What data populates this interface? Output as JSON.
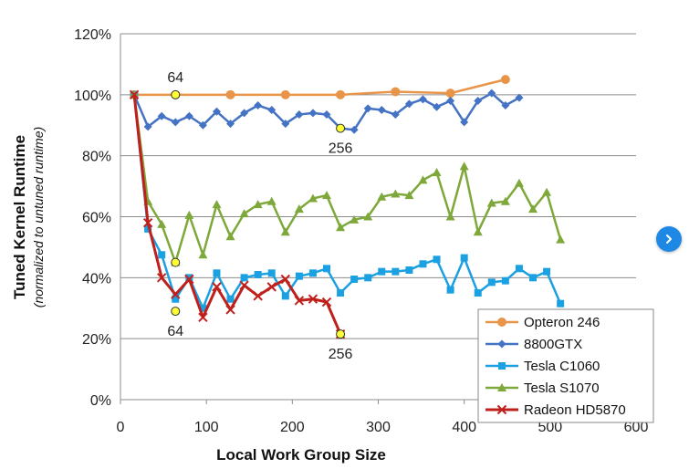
{
  "chart_data": {
    "type": "line",
    "xlabel": "Local Work Group Size",
    "ylabel": "Tuned Kernel Runtime",
    "ylabel_sub": "(normalized to untuned runtime)",
    "xlim": [
      0,
      600
    ],
    "ylim": [
      0,
      120
    ],
    "xticks": [
      0,
      100,
      200,
      300,
      400,
      500,
      600
    ],
    "yticks": [
      0,
      20,
      40,
      60,
      80,
      100,
      120
    ],
    "ytick_labels": [
      "0%",
      "20%",
      "40%",
      "60%",
      "80%",
      "100%",
      "120%"
    ],
    "grid": "horizontal",
    "legend_position": "bottom-right",
    "series": [
      {
        "name": "Opteron 246",
        "color": "#E8954A",
        "marker": "circle",
        "x": [
          16,
          64,
          128,
          192,
          256,
          320,
          384,
          448
        ],
        "y": [
          100,
          100,
          100,
          100,
          100,
          101,
          100.5,
          105
        ]
      },
      {
        "name": "8800GTX",
        "color": "#4472C4",
        "marker": "diamond",
        "x": [
          16,
          32,
          48,
          64,
          80,
          96,
          112,
          128,
          144,
          160,
          176,
          192,
          208,
          224,
          240,
          256,
          272,
          288,
          304,
          320,
          336,
          352,
          368,
          384,
          400,
          416,
          432,
          448,
          464
        ],
        "y": [
          100,
          89.5,
          93,
          91,
          93,
          90,
          94.5,
          90.5,
          94,
          96.5,
          95,
          90.5,
          93.5,
          94,
          93.5,
          89,
          88.5,
          95.5,
          95,
          93.5,
          97,
          98.5,
          96,
          98,
          91,
          98,
          100.5,
          96.5,
          99
        ]
      },
      {
        "name": "Tesla C1060",
        "color": "#1BA1E2",
        "marker": "square",
        "x": [
          16,
          32,
          48,
          64,
          80,
          96,
          112,
          128,
          144,
          160,
          176,
          192,
          208,
          224,
          240,
          256,
          272,
          288,
          304,
          320,
          336,
          352,
          368,
          384,
          400,
          416,
          432,
          448,
          464,
          480,
          496,
          512
        ],
        "y": [
          100,
          56,
          47.5,
          33,
          40,
          30,
          41.5,
          33,
          40,
          41,
          41.5,
          34,
          40.5,
          41.5,
          43,
          35,
          39.5,
          40,
          42,
          42,
          42.5,
          44.5,
          46,
          36,
          46.5,
          35,
          38.5,
          39,
          43,
          40,
          42,
          31.5
        ]
      },
      {
        "name": "Tesla S1070",
        "color": "#7EA83A",
        "marker": "triangle",
        "x": [
          16,
          32,
          48,
          64,
          80,
          96,
          112,
          128,
          144,
          160,
          176,
          192,
          208,
          224,
          240,
          256,
          272,
          288,
          304,
          320,
          336,
          352,
          368,
          384,
          400,
          416,
          432,
          448,
          464,
          480,
          496,
          512
        ],
        "y": [
          100,
          65,
          57.5,
          45,
          60.5,
          47.5,
          64,
          53.5,
          61,
          64,
          65,
          55,
          62.5,
          66,
          67,
          56.5,
          59,
          60,
          66.5,
          67.5,
          67,
          72,
          74.5,
          60,
          76.5,
          55,
          64.5,
          65,
          71,
          62.5,
          68,
          52.5
        ]
      },
      {
        "name": "Radeon HD5870",
        "color": "#C0201C",
        "marker": "x",
        "x": [
          16,
          32,
          48,
          64,
          80,
          96,
          112,
          128,
          144,
          160,
          176,
          192,
          208,
          224,
          240,
          256
        ],
        "y": [
          100,
          58,
          40,
          34.5,
          39.5,
          27,
          37,
          29.5,
          37.5,
          34,
          37,
          39.5,
          32.5,
          33,
          32,
          21.5
        ]
      }
    ],
    "highlight_points": [
      {
        "x": 64,
        "y": 100,
        "label": "64",
        "label_pos": "above"
      },
      {
        "x": 256,
        "y": 89,
        "label": "256",
        "label_pos": "below"
      },
      {
        "x": 64,
        "y": 45,
        "label": "",
        "label_pos": "none"
      },
      {
        "x": 64,
        "y": 29,
        "label": "64",
        "label_pos": "below"
      },
      {
        "x": 256,
        "y": 21.5,
        "label": "256",
        "label_pos": "below"
      }
    ]
  },
  "nav": {
    "next_icon": "chevron-right-icon",
    "accent_color": "#1e88e5"
  }
}
